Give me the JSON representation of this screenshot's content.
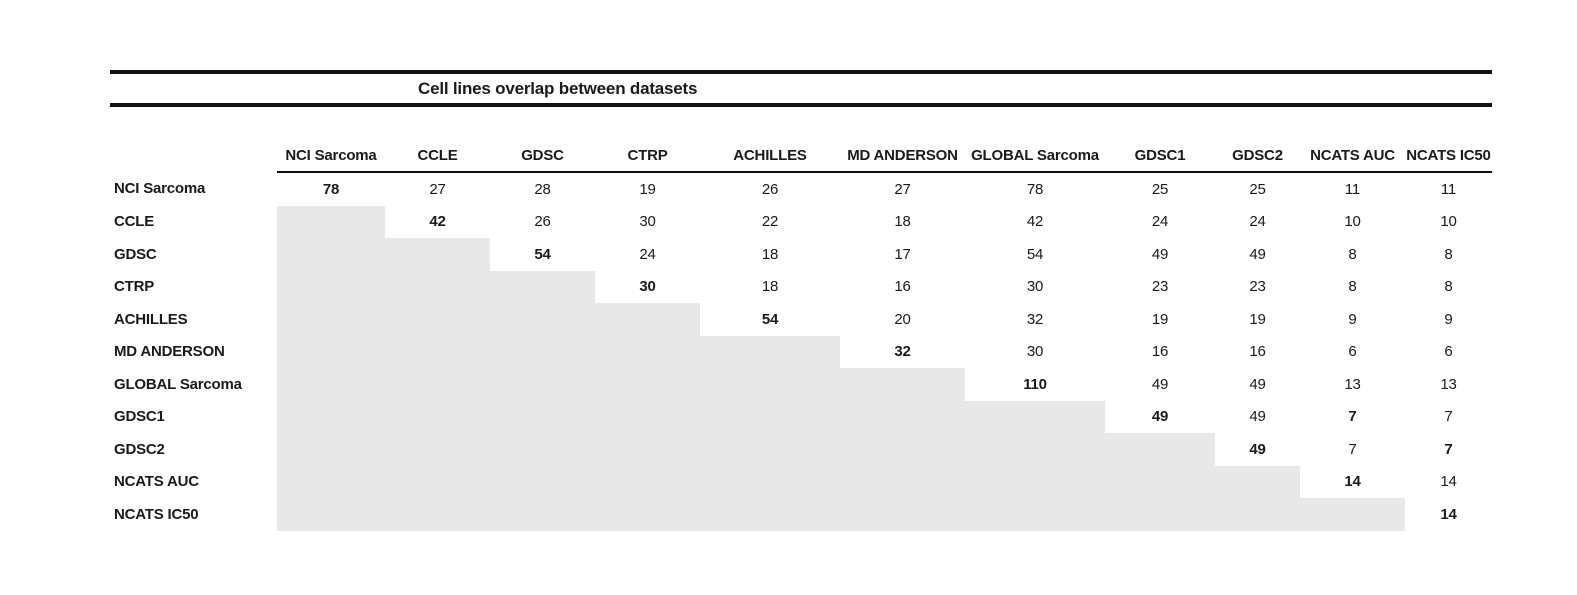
{
  "title": "Cell lines overlap between datasets",
  "datasets": [
    "NCI Sarcoma",
    "CCLE",
    "GDSC",
    "CTRP",
    "ACHILLES",
    "MD ANDERSON",
    "GLOBAL Sarcoma",
    "GDSC1",
    "GDSC2",
    "NCATS AUC",
    "NCATS IC50"
  ],
  "colors": {
    "shaded_lower_triangle": "#e8e8e8",
    "rule": "#111111",
    "text": "#1a1a1a",
    "background": "#ffffff"
  },
  "chart_data": {
    "type": "table",
    "title": "Cell lines overlap between datasets",
    "row_labels": [
      "NCI Sarcoma",
      "CCLE",
      "GDSC",
      "CTRP",
      "ACHILLES",
      "MD ANDERSON",
      "GLOBAL Sarcoma",
      "GDSC1",
      "GDSC2",
      "NCATS AUC",
      "NCATS IC50"
    ],
    "column_labels": [
      "NCI Sarcoma",
      "CCLE",
      "GDSC",
      "CTRP",
      "ACHILLES",
      "MD ANDERSON",
      "GLOBAL Sarcoma",
      "GDSC1",
      "GDSC2",
      "NCATS AUC",
      "NCATS IC50"
    ],
    "matrix": [
      [
        78,
        27,
        28,
        19,
        26,
        27,
        78,
        25,
        25,
        11,
        11
      ],
      [
        null,
        42,
        26,
        30,
        22,
        18,
        42,
        24,
        24,
        10,
        10
      ],
      [
        null,
        null,
        54,
        24,
        18,
        17,
        54,
        49,
        49,
        8,
        8
      ],
      [
        null,
        null,
        null,
        30,
        18,
        16,
        30,
        23,
        23,
        8,
        8
      ],
      [
        null,
        null,
        null,
        null,
        54,
        20,
        32,
        19,
        19,
        9,
        9
      ],
      [
        null,
        null,
        null,
        null,
        null,
        32,
        30,
        16,
        16,
        6,
        6
      ],
      [
        null,
        null,
        null,
        null,
        null,
        null,
        110,
        49,
        49,
        13,
        13
      ],
      [
        null,
        null,
        null,
        null,
        null,
        null,
        null,
        49,
        49,
        7,
        7
      ],
      [
        null,
        null,
        null,
        null,
        null,
        null,
        null,
        null,
        49,
        7,
        7
      ],
      [
        null,
        null,
        null,
        null,
        null,
        null,
        null,
        null,
        null,
        14,
        14
      ],
      [
        null,
        null,
        null,
        null,
        null,
        null,
        null,
        null,
        null,
        null,
        14
      ]
    ],
    "bold_cells": [
      [
        0,
        0
      ],
      [
        1,
        1
      ],
      [
        2,
        2
      ],
      [
        3,
        3
      ],
      [
        4,
        4
      ],
      [
        5,
        5
      ],
      [
        6,
        6
      ],
      [
        7,
        7
      ],
      [
        7,
        9
      ],
      [
        8,
        8
      ],
      [
        8,
        10
      ],
      [
        9,
        9
      ],
      [
        10,
        10
      ]
    ],
    "shading_rule": "cells below the diagonal are shaded gray and empty",
    "legend_position": "none",
    "grid": false
  }
}
